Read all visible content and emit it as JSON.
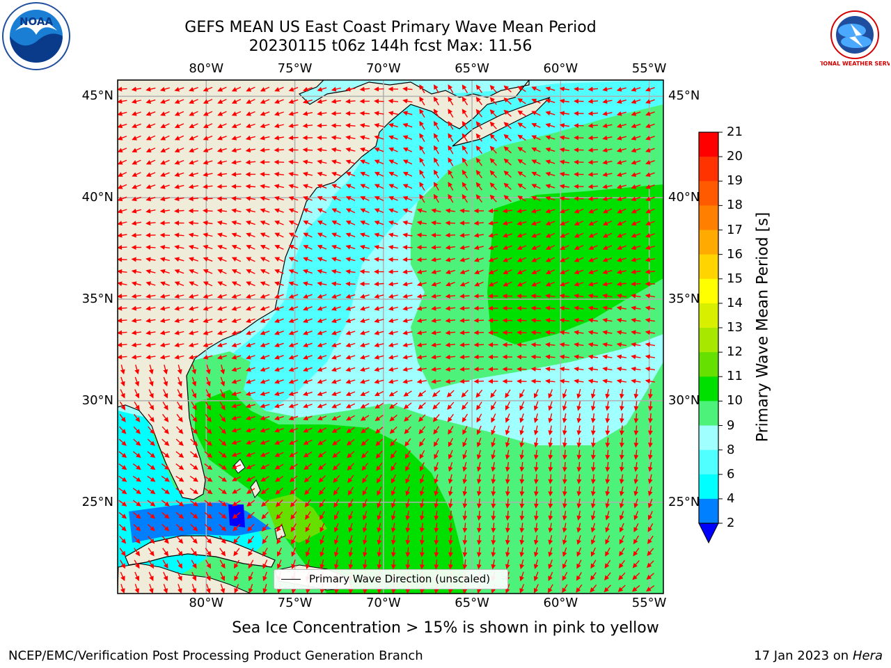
{
  "title": {
    "line1": "GEFS MEAN US East Coast Primary Wave Mean Period",
    "line2": "20230115 t06z 144h fcst   Max: 11.56"
  },
  "logos": {
    "left": "NOAA",
    "right": "NATIONAL WEATHER SERVICE"
  },
  "map": {
    "lon_ticks": [
      "80°W",
      "75°W",
      "70°W",
      "65°W",
      "60°W",
      "55°W"
    ],
    "lat_ticks": [
      "45°N",
      "40°N",
      "35°N",
      "30°N",
      "25°N"
    ],
    "lon_range": [
      -85,
      -54.2
    ],
    "lat_range": [
      20.5,
      45.8
    ],
    "legend": "Primary Wave Direction (unscaled)",
    "colors": {
      "land": "#efecd9",
      "arrows": "#ff0000",
      "grid": "#b0b0b0"
    }
  },
  "colorbar": {
    "label": "Primary Wave Mean Period [s]",
    "ticks": [
      "21",
      "20",
      "19",
      "18",
      "17",
      "16",
      "15",
      "14",
      "13",
      "12",
      "11",
      "10",
      "9",
      "8",
      "6",
      "4",
      "2"
    ],
    "colors": [
      "#ff0000",
      "#ff3300",
      "#ff5a00",
      "#ff8000",
      "#ffaa00",
      "#ffd400",
      "#ffff00",
      "#d8f000",
      "#a8e800",
      "#66e000",
      "#00e000",
      "#4cf27a",
      "#a0ffff",
      "#50ffff",
      "#00ffff",
      "#0080ff"
    ],
    "extend_color": "#0000ff"
  },
  "caption": "Sea Ice Concentration > 15% is shown in pink to yellow",
  "footer": {
    "credit": "NCEP/EMC/Verification Post Processing Product Generation Branch",
    "date": "17 Jan 2023 on",
    "machine": "Hera"
  }
}
